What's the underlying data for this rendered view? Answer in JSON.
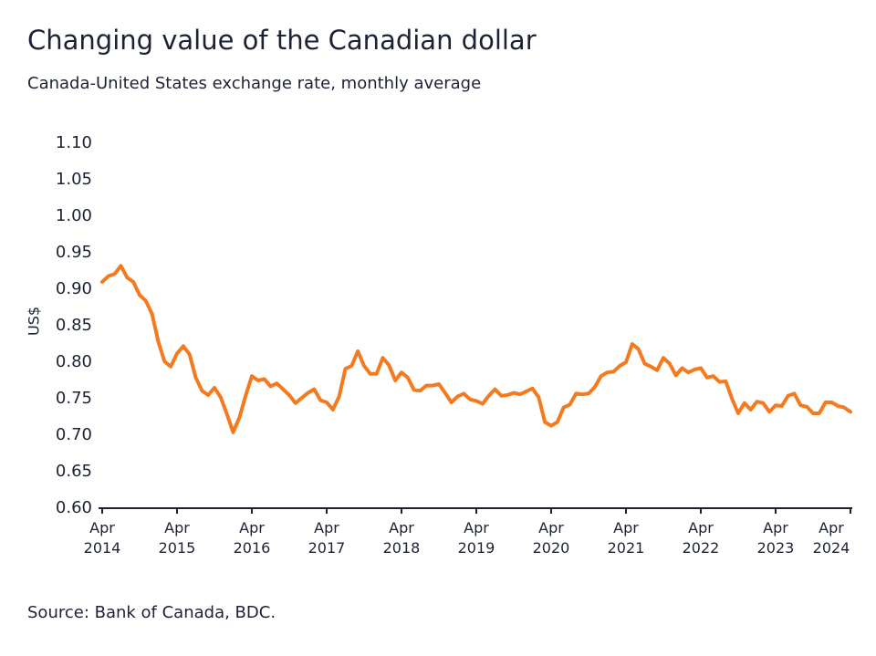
{
  "chart_data": {
    "type": "line",
    "title": "Changing value of the Canadian dollar",
    "subtitle": "Canada-United States exchange rate, monthly average",
    "y_label": "US$",
    "source": "Source: Bank of Canada, BDC.",
    "color": "#f47a1f",
    "categories": [
      "Apr 2014",
      null,
      null,
      null,
      null,
      null,
      null,
      null,
      null,
      null,
      null,
      null,
      "Apr 2015",
      null,
      null,
      null,
      null,
      null,
      null,
      null,
      null,
      null,
      null,
      null,
      "Apr 2016",
      null,
      null,
      null,
      null,
      null,
      null,
      null,
      null,
      null,
      null,
      null,
      "Apr 2017",
      null,
      null,
      null,
      null,
      null,
      null,
      null,
      null,
      null,
      null,
      null,
      "Apr 2018",
      null,
      null,
      null,
      null,
      null,
      null,
      null,
      null,
      null,
      null,
      null,
      "Apr 2019",
      null,
      null,
      null,
      null,
      null,
      null,
      null,
      null,
      null,
      null,
      null,
      "Apr 2020",
      null,
      null,
      null,
      null,
      null,
      null,
      null,
      null,
      null,
      null,
      null,
      "Apr 2021",
      null,
      null,
      null,
      null,
      null,
      null,
      null,
      null,
      null,
      null,
      null,
      "Apr 2022",
      null,
      null,
      null,
      null,
      null,
      null,
      null,
      null,
      null,
      null,
      null,
      "Apr 2023",
      null,
      null,
      null,
      null,
      null,
      null,
      null,
      null,
      null,
      null,
      null,
      "Apr 2024"
    ],
    "values": [
      0.91,
      0.918,
      0.921,
      0.932,
      0.916,
      0.91,
      0.892,
      0.884,
      0.866,
      0.828,
      0.801,
      0.794,
      0.812,
      0.822,
      0.811,
      0.779,
      0.761,
      0.755,
      0.765,
      0.752,
      0.729,
      0.704,
      0.724,
      0.754,
      0.781,
      0.775,
      0.777,
      0.767,
      0.771,
      0.763,
      0.755,
      0.744,
      0.751,
      0.758,
      0.763,
      0.748,
      0.745,
      0.735,
      0.753,
      0.791,
      0.795,
      0.815,
      0.795,
      0.784,
      0.784,
      0.806,
      0.796,
      0.775,
      0.786,
      0.779,
      0.762,
      0.761,
      0.768,
      0.768,
      0.77,
      0.758,
      0.745,
      0.753,
      0.757,
      0.749,
      0.747,
      0.743,
      0.754,
      0.763,
      0.754,
      0.755,
      0.758,
      0.756,
      0.76,
      0.764,
      0.752,
      0.718,
      0.713,
      0.718,
      0.738,
      0.742,
      0.757,
      0.756,
      0.757,
      0.766,
      0.781,
      0.786,
      0.787,
      0.795,
      0.8,
      0.825,
      0.818,
      0.798,
      0.794,
      0.789,
      0.806,
      0.798,
      0.782,
      0.792,
      0.786,
      0.79,
      0.792,
      0.779,
      0.781,
      0.773,
      0.774,
      0.75,
      0.73,
      0.744,
      0.735,
      0.746,
      0.744,
      0.732,
      0.741,
      0.74,
      0.754,
      0.757,
      0.741,
      0.739,
      0.73,
      0.73,
      0.745,
      0.745,
      0.74,
      0.738,
      0.732
    ],
    "ylim": [
      0.6,
      1.1
    ],
    "yticks": [
      {
        "value": 0.6,
        "label": "0.60"
      },
      0.65,
      {
        "value": 0.7,
        "label": "0.70"
      },
      0.75,
      {
        "value": 0.8,
        "label": "0.80"
      },
      0.85,
      {
        "value": 0.9,
        "label": "0.90"
      },
      0.95,
      {
        "value": 1.0,
        "label": "1.00"
      },
      1.05,
      {
        "value": 1.1,
        "label": "1.10"
      }
    ]
  }
}
